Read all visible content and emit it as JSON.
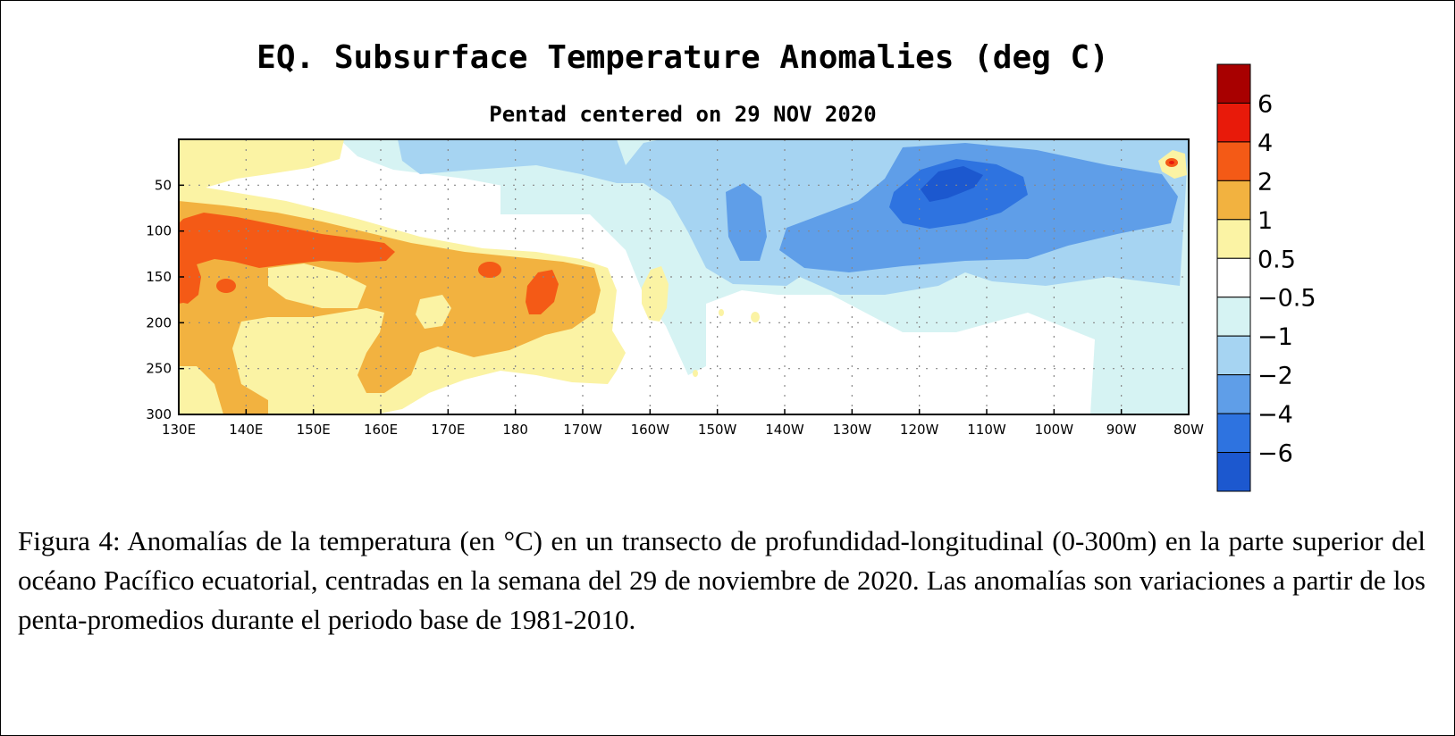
{
  "chart_data": {
    "type": "heatmap",
    "title": "EQ. Subsurface Temperature Anomalies (deg C)",
    "subtitle": "Pentad centered on 29 NOV 2020",
    "xlabel": "",
    "ylabel": "",
    "x_ticks": [
      "130E",
      "140E",
      "150E",
      "160E",
      "170E",
      "180",
      "170W",
      "160W",
      "150W",
      "140W",
      "130W",
      "120W",
      "110W",
      "100W",
      "90W",
      "80W"
    ],
    "y_ticks": [
      "50",
      "100",
      "150",
      "200",
      "250",
      "300"
    ],
    "ylim": [
      300,
      0
    ],
    "grid": "dotted",
    "colorbar": {
      "labels": [
        "6",
        "4",
        "2",
        "1",
        "0.5",
        "−0.5",
        "−1",
        "−2",
        "−4",
        "−6"
      ],
      "colors": [
        "#a80000",
        "#e81a0a",
        "#f45a16",
        "#f2b240",
        "#fbf3a4",
        "#ffffff",
        "#d6f3f3",
        "#a6d4f2",
        "#5f9ee8",
        "#2e73e0",
        "#1c58cf"
      ]
    },
    "anomaly_regions": [
      {
        "longitude": "130E-135E",
        "depth_m": "0-300",
        "level": "0.5 to 1"
      },
      {
        "longitude": "131E-156E",
        "depth_m": "95-125",
        "level": "2 to 4"
      },
      {
        "longitude": "131E-136E",
        "depth_m": "130-175",
        "level": "2 to 4"
      },
      {
        "longitude": "130E-178W",
        "depth_m": "75-265",
        "level": "1 to 2"
      },
      {
        "longitude": "130E-170W",
        "depth_m": "60-300",
        "level": "0.5 to 1"
      },
      {
        "longitude": "174E-178E",
        "depth_m": "140-155",
        "level": "2 to 4"
      },
      {
        "longitude": "177E-180",
        "depth_m": "150-190",
        "level": "2 to 4"
      },
      {
        "longitude": "161W-158W",
        "depth_m": "150-200",
        "level": "0.5 to 1"
      },
      {
        "longitude": "157W-118W",
        "depth_m": "160-280",
        "level": "-0.5 to -1"
      },
      {
        "longitude": "163E-81W",
        "depth_m": "10-120",
        "level": "-1 to -2"
      },
      {
        "longitude": "148W-82W",
        "depth_m": "30-160",
        "level": "-2 to -4"
      },
      {
        "longitude": "124W-107W",
        "depth_m": "25-75",
        "level": "-4 to -6"
      },
      {
        "longitude": "81W-80W",
        "depth_m": "25-40",
        "level": "2 to 4"
      }
    ]
  },
  "caption": "Figura 4: Anomalías de la temperatura (en °C) en un transecto de profundidad-longitudinal (0-300m) en la parte superior del océano Pacífico ecuatorial, centradas en la semana del 29 de noviembre de 2020. Las anomalías son variaciones a partir de los penta-promedios durante el periodo base de 1981-2010."
}
